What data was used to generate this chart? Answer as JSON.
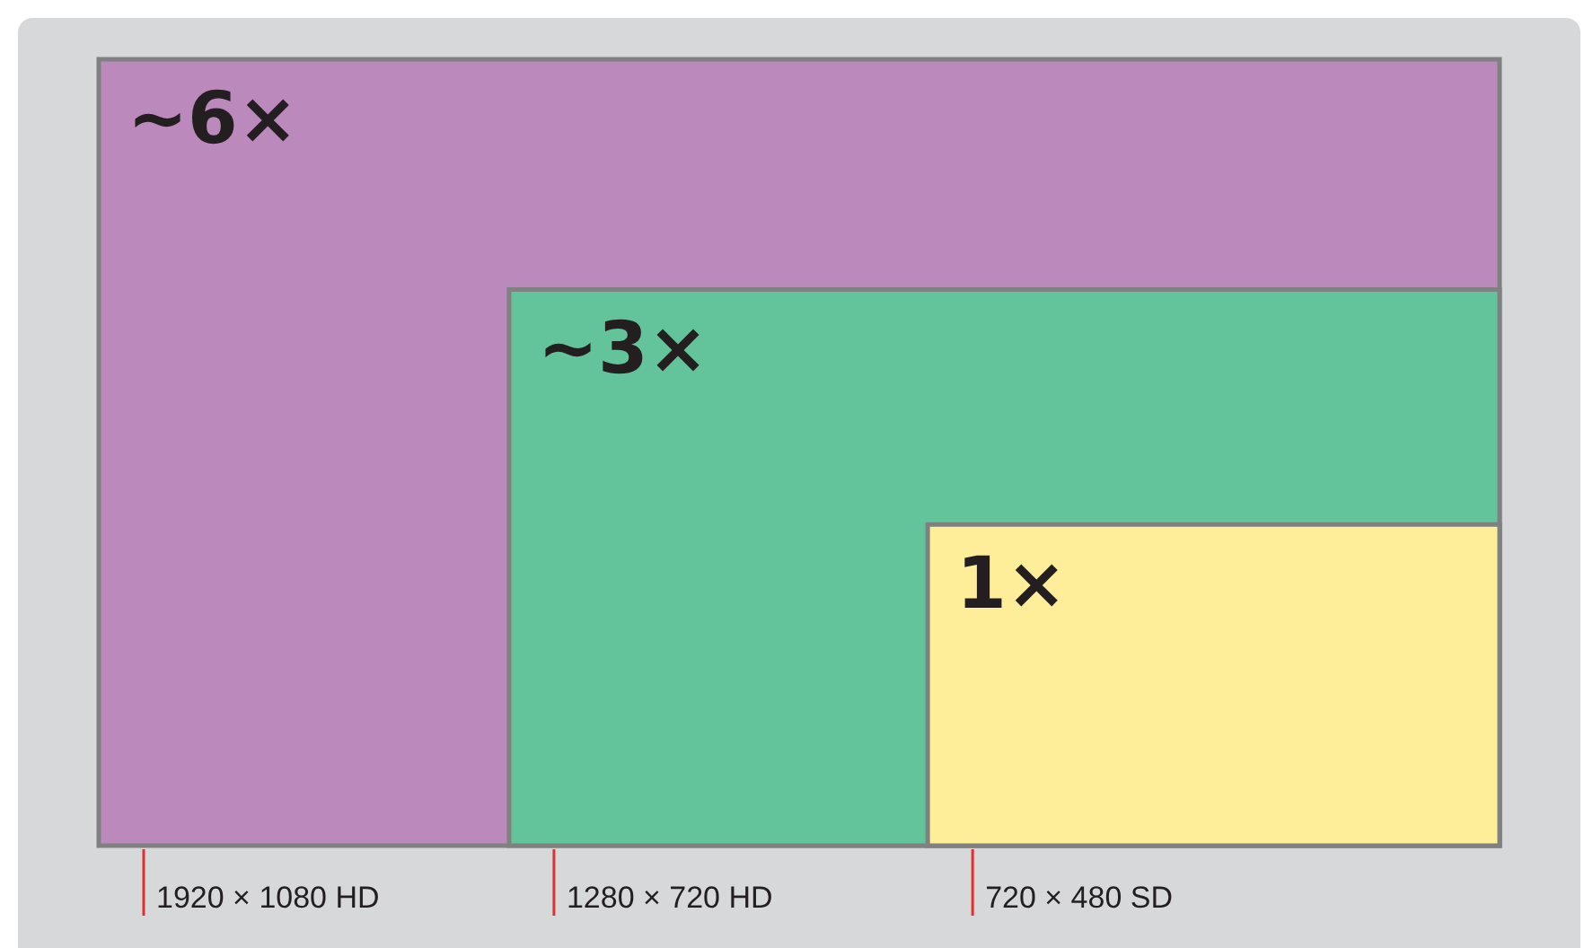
{
  "chart_data": {
    "type": "other",
    "categories": [
      "1920 × 1080 HD",
      "1280 × 720 HD",
      "720 × 480 SD"
    ],
    "values": [
      6,
      3,
      1
    ],
    "value_labels": [
      "~6×",
      "~3×",
      "1×"
    ],
    "colors": [
      "#bc89bd",
      "#63c39a",
      "#ffee99"
    ]
  }
}
